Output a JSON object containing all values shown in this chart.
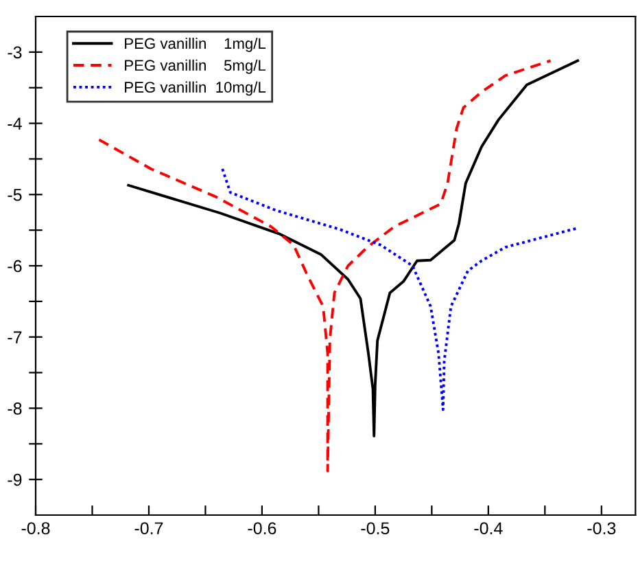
{
  "chart_data": {
    "type": "line",
    "legend": "top left",
    "grid": false,
    "xlim": [
      -0.8,
      -0.27
    ],
    "ylim": [
      -9.5,
      -2.5
    ],
    "xticks": [
      -0.8,
      {
        "value": -0.75,
        "label": null
      },
      -0.7,
      {
        "value": -0.65,
        "label": null
      },
      -0.6,
      {
        "value": -0.55,
        "label": null
      },
      -0.5,
      {
        "value": -0.45,
        "label": null
      },
      -0.4,
      {
        "value": -0.35,
        "label": null
      },
      -0.3
    ],
    "yticks": [
      -9,
      {
        "value": -8.5,
        "label": null
      },
      -8,
      {
        "value": -7.5,
        "label": null
      },
      -7,
      {
        "value": -6.5,
        "label": null
      },
      -6,
      {
        "value": -5.5,
        "label": null
      },
      -5,
      {
        "value": -4.5,
        "label": null
      },
      -4,
      {
        "value": -3.5,
        "label": null
      },
      -3
    ],
    "series": [
      {
        "name": "PEG vanillin    1mg/L",
        "color": "#000000",
        "line_style": "solid",
        "x": [
          -0.718,
          -0.637,
          -0.585,
          -0.548,
          -0.524,
          -0.513,
          -0.506,
          -0.502,
          -0.501,
          -0.5,
          -0.498,
          -0.487,
          -0.475,
          -0.463,
          -0.451,
          -0.43,
          -0.426,
          -0.42,
          -0.406,
          -0.391,
          -0.366,
          -0.321
        ],
        "values": [
          -4.87,
          -5.26,
          -5.55,
          -5.84,
          -6.19,
          -6.46,
          -7.23,
          -7.73,
          -8.39,
          -7.67,
          -7.05,
          -6.38,
          -6.22,
          -5.93,
          -5.92,
          -5.64,
          -5.41,
          -4.84,
          -4.33,
          -3.95,
          -3.46,
          -3.12
        ]
      },
      {
        "name": "PEG vanillin    5mg/L",
        "color": "#ff0000",
        "line_style": "dashed",
        "x": [
          -0.744,
          -0.698,
          -0.641,
          -0.592,
          -0.572,
          -0.56,
          -0.546,
          -0.542,
          -0.542,
          -0.54,
          -0.536,
          -0.524,
          -0.507,
          -0.483,
          -0.442,
          -0.436,
          -0.428,
          -0.422,
          -0.406,
          -0.385,
          -0.345
        ],
        "values": [
          -4.23,
          -4.64,
          -5.03,
          -5.45,
          -5.71,
          -6.13,
          -6.57,
          -7.23,
          -8.88,
          -7.03,
          -6.38,
          -6.0,
          -5.74,
          -5.45,
          -5.13,
          -4.84,
          -4.07,
          -3.78,
          -3.56,
          -3.33,
          -3.12
        ]
      },
      {
        "name": "PEG vanillin  10mg/L",
        "color": "#0000ff",
        "line_style": "dotted",
        "x": [
          -0.635,
          -0.628,
          -0.588,
          -0.531,
          -0.495,
          -0.467,
          -0.451,
          -0.444,
          -0.441,
          -0.44,
          -0.439,
          -0.433,
          -0.418,
          -0.406,
          -0.385,
          -0.321
        ],
        "values": [
          -4.64,
          -4.97,
          -5.22,
          -5.49,
          -5.71,
          -6.0,
          -6.57,
          -7.23,
          -7.81,
          -8.02,
          -7.34,
          -6.57,
          -6.07,
          -5.93,
          -5.74,
          -5.47
        ]
      }
    ]
  }
}
